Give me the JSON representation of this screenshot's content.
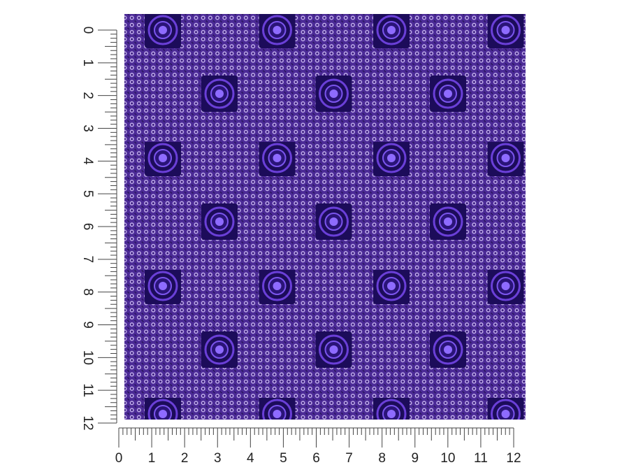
{
  "rulers": {
    "vertical": {
      "ticks": [
        0,
        1,
        2,
        3,
        4,
        5,
        6,
        7,
        8,
        9,
        10,
        11,
        12
      ]
    },
    "horizontal": {
      "ticks": [
        0,
        1,
        2,
        3,
        4,
        5,
        6,
        7,
        8,
        9,
        10,
        11,
        12
      ]
    }
  }
}
